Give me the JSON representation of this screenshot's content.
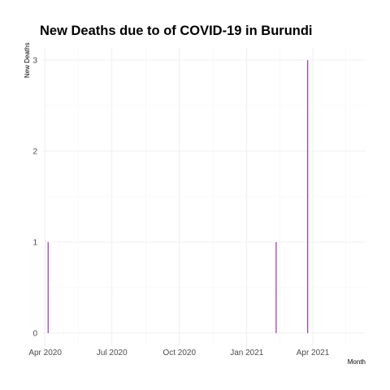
{
  "chart_data": {
    "type": "bar",
    "title": "New Deaths due to of COVID-19 in Burundi",
    "xlabel": "Month",
    "ylabel": "New Deaths",
    "x_tick_labels": [
      "Apr 2020",
      "Jul 2020",
      "Oct 2020",
      "Jan 2021",
      "Apr 2021"
    ],
    "x_tick_dates": [
      "2020-04-01",
      "2020-07-01",
      "2020-10-01",
      "2021-01-01",
      "2021-04-01"
    ],
    "y_tick_labels": [
      "0",
      "1",
      "2",
      "3"
    ],
    "y_ticks": [
      0,
      1,
      2,
      3
    ],
    "xlim": [
      "2020-03-28",
      "2021-06-12"
    ],
    "ylim": [
      0,
      3
    ],
    "grid": true,
    "legend": "none",
    "bar_color": "#9b1bb5",
    "series": [
      {
        "x": [
          "2020-04-05",
          "2021-02-10",
          "2021-03-25"
        ],
        "values": [
          1,
          1,
          3
        ]
      }
    ]
  }
}
